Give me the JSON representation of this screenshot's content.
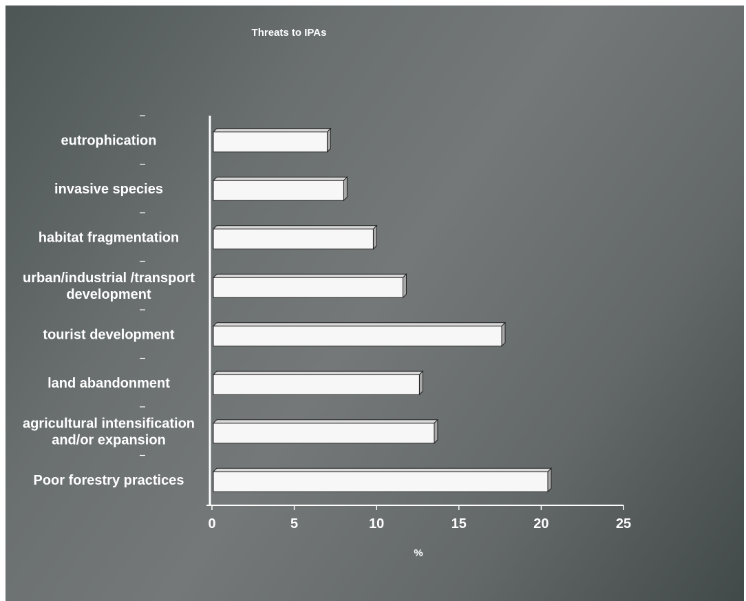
{
  "colors": {
    "bar_front": "#f7f7f7",
    "bar_top": "#d9d9d9",
    "bar_side": "#a8a8a8",
    "bar_edge": "#222222",
    "axis": "#ffffff",
    "text": "#ffffff"
  },
  "chart_data": {
    "type": "bar",
    "orientation": "horizontal",
    "title": "Threats to IPAs",
    "xlabel": "%",
    "ylabel": "",
    "xlim": [
      0,
      25
    ],
    "xticks": [
      "0",
      "5",
      "10",
      "15",
      "20",
      "25"
    ],
    "categories": [
      [
        "eutrophication"
      ],
      [
        "invasive species"
      ],
      [
        "habitat fragmentation"
      ],
      [
        "urban/industrial /transport",
        "development"
      ],
      [
        "tourist development"
      ],
      [
        "land abandonment"
      ],
      [
        "agricultural intensification",
        "and/or expansion"
      ],
      [
        "Poor forestry practices"
      ]
    ],
    "values": [
      7,
      8,
      9.8,
      11.6,
      17.6,
      12.6,
      13.5,
      20.4
    ],
    "grid": false,
    "legend": "none",
    "style": "3d"
  }
}
